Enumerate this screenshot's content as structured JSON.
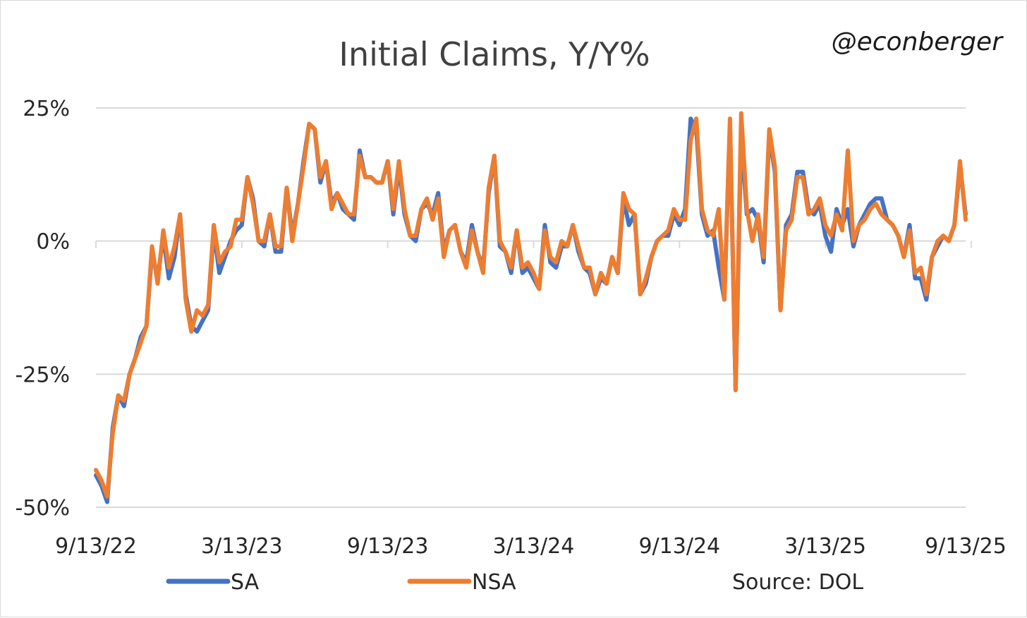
{
  "chart_data": {
    "type": "line",
    "title": "Initial Claims, Y/Y%",
    "handle": "@econberger",
    "source": "Source: DOL",
    "y_ticks": [
      {
        "value": 25,
        "label": "25%"
      },
      {
        "value": 0,
        "label": "0%"
      },
      {
        "value": -25,
        "label": "-25%"
      },
      {
        "value": -50,
        "label": "-50%"
      }
    ],
    "x_ticks": [
      {
        "index": 0,
        "label": "9/13/22"
      },
      {
        "index": 26,
        "label": "3/13/23"
      },
      {
        "index": 52,
        "label": "9/13/23"
      },
      {
        "index": 78,
        "label": "3/13/24"
      },
      {
        "index": 104,
        "label": "9/13/24"
      },
      {
        "index": 130,
        "label": "3/13/25"
      },
      {
        "index": 156,
        "label": "9/13/25"
      }
    ],
    "ylim": [
      -50,
      25
    ],
    "grid": true,
    "legend_position": "bottom",
    "series": [
      {
        "name": "SA",
        "color": "#4472C4",
        "values": [
          -44,
          -46,
          -49,
          -35,
          -29,
          -31,
          -25,
          -22,
          -18,
          -16,
          -2,
          -7,
          1,
          -7,
          -3,
          5,
          -10,
          -16,
          -17,
          -15,
          -13,
          2,
          -6,
          -3,
          0,
          2,
          3,
          12,
          8,
          0,
          -1,
          5,
          -2,
          -2,
          10,
          1,
          7,
          15,
          22,
          21,
          11,
          15,
          7,
          9,
          6,
          5,
          4,
          17,
          12,
          12,
          11,
          11,
          15,
          5,
          14,
          5,
          1,
          0,
          6,
          7,
          5,
          9,
          -2,
          2,
          3,
          -2,
          -4,
          3,
          -2,
          -5,
          9,
          16,
          -1,
          -2,
          -6,
          2,
          -6,
          -5,
          -7,
          -9,
          3,
          -4,
          -5,
          -1,
          -1,
          3,
          -2,
          -5,
          -6,
          -10,
          -7,
          -8,
          -3,
          -6,
          8,
          3,
          5,
          -10,
          -8,
          -3,
          0,
          1,
          1,
          5,
          3,
          6,
          23,
          21,
          5,
          1,
          2,
          -5,
          -11,
          22,
          -28,
          20,
          5,
          6,
          4,
          -4,
          20,
          13,
          -13,
          3,
          5,
          13,
          13,
          6,
          5,
          7,
          1,
          -2,
          6,
          3,
          6,
          -1,
          3,
          5,
          7,
          8,
          8,
          4,
          3,
          1,
          -3,
          3,
          -7,
          -7,
          -11,
          -3,
          -1,
          1,
          0,
          3,
          14,
          5
        ]
      },
      {
        "name": "NSA",
        "color": "#ED7D31",
        "values": [
          -43,
          -45,
          -48,
          -36,
          -29,
          -30,
          -25,
          -22,
          -19,
          -16,
          -1,
          -8,
          2,
          -5,
          -1,
          5,
          -11,
          -17,
          -13,
          -14,
          -12,
          3,
          -4,
          -2,
          -1,
          4,
          4,
          12,
          7,
          0,
          0,
          5,
          -1,
          -1,
          10,
          0,
          7,
          14,
          22,
          21,
          12,
          15,
          6,
          9,
          7,
          5,
          5,
          16,
          12,
          12,
          11,
          11,
          15,
          6,
          15,
          6,
          1,
          1,
          6,
          8,
          4,
          8,
          -3,
          2,
          3,
          -2,
          -5,
          2,
          -2,
          -6,
          10,
          16,
          0,
          -2,
          -5,
          2,
          -5,
          -4,
          -6,
          -9,
          2,
          -3,
          -4,
          0,
          -1,
          3,
          -1,
          -5,
          -5,
          -10,
          -6,
          -8,
          -3,
          -6,
          9,
          6,
          5,
          -10,
          -7,
          -3,
          0,
          1,
          2,
          6,
          4,
          4,
          19,
          23,
          6,
          2,
          1,
          6,
          -11,
          23,
          -28,
          24,
          6,
          0,
          5,
          -3,
          21,
          14,
          -13,
          2,
          4,
          12,
          12,
          5,
          6,
          8,
          3,
          1,
          5,
          2,
          17,
          0,
          3,
          4,
          6,
          7,
          5,
          4,
          3,
          1,
          -3,
          2,
          -6,
          -5,
          -10,
          -3,
          0,
          1,
          0,
          3,
          15,
          4
        ]
      }
    ]
  }
}
